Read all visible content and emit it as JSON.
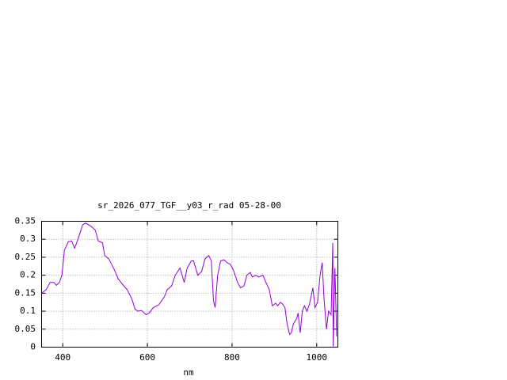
{
  "chart_data": {
    "type": "line",
    "title": "sr_2026_077_TGF__y03_r_rad 05-28-00",
    "x_label": "nm",
    "x": [
      350,
      361,
      370,
      379,
      385,
      392,
      398,
      404,
      413,
      421,
      428,
      436,
      447,
      454,
      468,
      477,
      484,
      494,
      499,
      509,
      522,
      531,
      541,
      552,
      563,
      571,
      578,
      586,
      597,
      604,
      614,
      627,
      640,
      647,
      657,
      666,
      677,
      687,
      694,
      704,
      709,
      719,
      728,
      736,
      745,
      751,
      756,
      760,
      766,
      773,
      781,
      788,
      796,
      803,
      813,
      820,
      828,
      835,
      843,
      848,
      856,
      863,
      873,
      880,
      888,
      895,
      903,
      908,
      914,
      919,
      925,
      930,
      936,
      940,
      945,
      953,
      956,
      961,
      966,
      971,
      977,
      983,
      991,
      996,
      1002,
      1008,
      1013,
      1017,
      1023,
      1028,
      1034,
      1038,
      1039,
      1043,
      1045,
      1047
    ],
    "series": [
      {
        "color": "#9400d3",
        "values": [
          0.15,
          0.16,
          0.18,
          0.18,
          0.172,
          0.18,
          0.2,
          0.27,
          0.293,
          0.295,
          0.275,
          0.3,
          0.34,
          0.345,
          0.335,
          0.325,
          0.295,
          0.29,
          0.255,
          0.245,
          0.215,
          0.19,
          0.175,
          0.16,
          0.135,
          0.105,
          0.1,
          0.102,
          0.09,
          0.095,
          0.11,
          0.118,
          0.14,
          0.16,
          0.17,
          0.2,
          0.22,
          0.18,
          0.22,
          0.24,
          0.24,
          0.2,
          0.21,
          0.245,
          0.255,
          0.24,
          0.13,
          0.11,
          0.2,
          0.24,
          0.243,
          0.235,
          0.23,
          0.215,
          0.18,
          0.165,
          0.17,
          0.2,
          0.208,
          0.195,
          0.2,
          0.195,
          0.2,
          0.18,
          0.16,
          0.115,
          0.122,
          0.115,
          0.125,
          0.12,
          0.11,
          0.065,
          0.035,
          0.04,
          0.065,
          0.08,
          0.095,
          0.04,
          0.1,
          0.115,
          0.1,
          0.12,
          0.165,
          0.11,
          0.125,
          0.2,
          0.235,
          0.14,
          0.05,
          0.1,
          0.09,
          0.29,
          0.0,
          0.22,
          0.13,
          0.03
        ]
      }
    ],
    "xlim": [
      350,
      1050
    ],
    "xticks": [
      400,
      600,
      800,
      1000
    ],
    "ylim": [
      0,
      0.35
    ],
    "yticks": [
      0,
      0.05,
      0.1,
      0.15,
      0.2,
      0.25,
      0.3,
      0.35
    ],
    "grid": true
  }
}
